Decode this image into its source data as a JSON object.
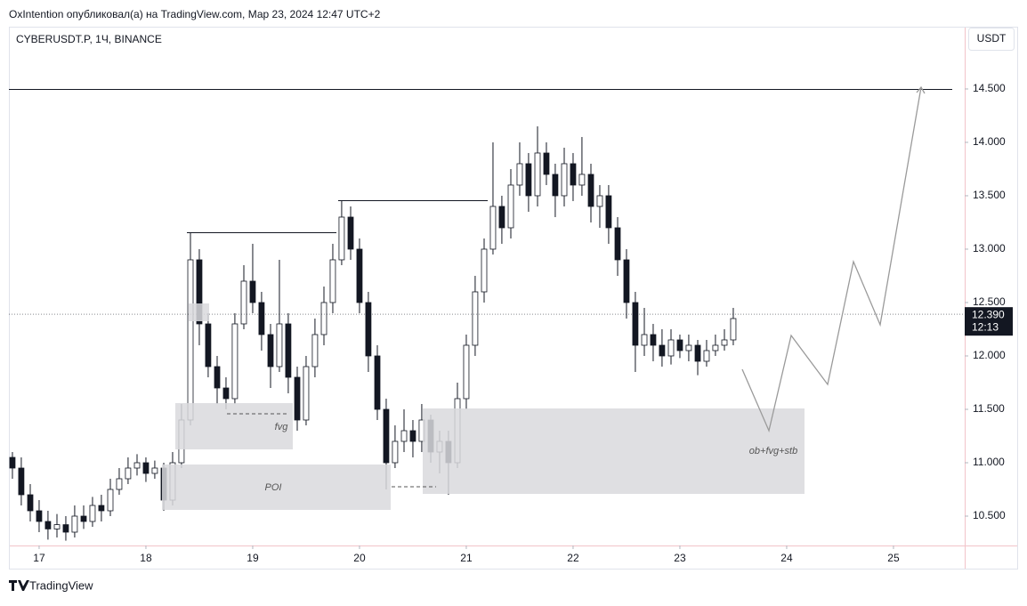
{
  "header": {
    "note": "OxIntention опубликовал(а) на TradingView.com, Мар 23, 2024 12:47 UTC+2"
  },
  "footer": {
    "brand": "TradingView"
  },
  "annotations": [
    "fvg",
    "POI",
    "ob+fvg+stb"
  ],
  "chart_data": {
    "type": "candlestick",
    "title": "CYBERUSDT.P, 1Ч, BINANCE",
    "currency": "USDT",
    "up_color": "#ffffff",
    "down_color": "#131722",
    "xlim": [
      16.717,
      25.667
    ],
    "ylim": [
      10.225,
      15.083
    ],
    "xticks": [
      17,
      18,
      19,
      20,
      21,
      22,
      23,
      24,
      25
    ],
    "yticks": [
      {
        "value": 10.5,
        "label": "10.500"
      },
      {
        "value": 11,
        "label": "11.000"
      },
      {
        "value": 11.5,
        "label": "11.500"
      },
      {
        "value": 12,
        "label": "12.000"
      },
      {
        "value": 12.5,
        "label": "12.500"
      },
      {
        "value": 13,
        "label": "13.000"
      },
      {
        "value": 13.5,
        "label": "13.500"
      },
      {
        "value": 14,
        "label": "14.000"
      },
      {
        "value": 14.5,
        "label": "14.500"
      }
    ],
    "last_price": {
      "value": 12.39,
      "label": "12.390"
    },
    "countdown": "12:13",
    "x": [
      16.75,
      16.833,
      16.917,
      17.0,
      17.083,
      17.167,
      17.25,
      17.333,
      17.417,
      17.5,
      17.583,
      17.667,
      17.75,
      17.833,
      17.917,
      18.0,
      18.083,
      18.167,
      18.25,
      18.333,
      18.417,
      18.5,
      18.583,
      18.667,
      18.75,
      18.833,
      18.917,
      19.0,
      19.083,
      19.167,
      19.25,
      19.333,
      19.417,
      19.5,
      19.583,
      19.667,
      19.75,
      19.833,
      19.917,
      20.0,
      20.083,
      20.167,
      20.25,
      20.333,
      20.417,
      20.5,
      20.583,
      20.667,
      20.75,
      20.833,
      20.917,
      21.0,
      21.083,
      21.167,
      21.25,
      21.333,
      21.417,
      21.5,
      21.583,
      21.667,
      21.75,
      21.833,
      21.917,
      22.0,
      22.083,
      22.167,
      22.25,
      22.333,
      22.417,
      22.5,
      22.583,
      22.667,
      22.75,
      22.833,
      22.917,
      23.0,
      23.083,
      23.167,
      23.25,
      23.333,
      23.417,
      23.5
    ],
    "open": [
      11.05,
      10.95,
      10.7,
      10.55,
      10.45,
      10.38,
      10.42,
      10.35,
      10.5,
      10.45,
      10.6,
      10.55,
      10.75,
      10.85,
      10.95,
      11.0,
      10.9,
      10.95,
      10.65,
      11.0,
      11.4,
      12.9,
      12.3,
      11.9,
      11.7,
      11.6,
      12.3,
      12.7,
      12.5,
      12.2,
      11.9,
      12.3,
      11.8,
      11.4,
      11.9,
      12.2,
      12.5,
      12.9,
      13.3,
      13.0,
      12.5,
      12.0,
      11.5,
      11.0,
      11.2,
      11.3,
      11.2,
      11.4,
      11.1,
      11.2,
      11.0,
      11.6,
      12.1,
      12.6,
      13.0,
      13.4,
      13.2,
      13.6,
      13.8,
      13.5,
      13.9,
      13.7,
      13.5,
      13.8,
      13.6,
      13.7,
      13.4,
      13.5,
      13.2,
      12.9,
      12.5,
      12.1,
      12.2,
      12.1,
      12.0,
      12.15,
      12.05,
      12.1,
      11.95,
      12.05,
      12.1,
      12.15
    ],
    "high": [
      11.1,
      11.05,
      10.8,
      10.65,
      10.55,
      10.52,
      10.5,
      10.6,
      10.6,
      10.68,
      10.7,
      10.85,
      10.95,
      11.05,
      11.08,
      11.05,
      11.02,
      11.0,
      11.1,
      11.55,
      13.15,
      13.0,
      12.4,
      12.0,
      11.8,
      12.4,
      12.85,
      13.05,
      12.6,
      12.3,
      12.9,
      12.4,
      11.9,
      12.0,
      12.35,
      12.65,
      13.05,
      13.45,
      13.4,
      13.1,
      12.6,
      12.1,
      11.6,
      11.35,
      11.5,
      11.4,
      11.55,
      11.45,
      11.3,
      11.3,
      11.75,
      12.2,
      12.75,
      13.1,
      14.0,
      13.5,
      13.75,
      14.0,
      13.9,
      14.15,
      14.0,
      13.8,
      13.95,
      13.9,
      14.05,
      13.8,
      13.6,
      13.6,
      13.3,
      13.0,
      12.6,
      12.45,
      12.3,
      12.25,
      12.25,
      12.2,
      12.2,
      12.15,
      12.15,
      12.2,
      12.25,
      12.45
    ],
    "low": [
      10.85,
      10.6,
      10.45,
      10.35,
      10.28,
      10.3,
      10.27,
      10.3,
      10.38,
      10.4,
      10.45,
      10.5,
      10.7,
      10.8,
      10.88,
      10.82,
      10.85,
      10.55,
      10.6,
      10.95,
      11.35,
      12.1,
      11.8,
      11.55,
      11.5,
      11.55,
      12.25,
      12.4,
      12.05,
      11.7,
      11.85,
      11.65,
      11.3,
      11.35,
      11.8,
      12.1,
      12.4,
      12.85,
      12.9,
      12.4,
      11.85,
      11.4,
      10.75,
      10.95,
      11.1,
      11.05,
      11.1,
      11.0,
      10.9,
      10.7,
      10.95,
      11.5,
      12.0,
      12.5,
      12.95,
      13.05,
      13.1,
      13.5,
      13.35,
      13.4,
      13.6,
      13.3,
      13.4,
      13.45,
      13.5,
      13.25,
      13.2,
      13.05,
      12.75,
      12.35,
      11.85,
      12.0,
      11.95,
      11.9,
      11.92,
      11.98,
      11.95,
      11.82,
      11.9,
      12.0,
      12.05,
      12.1
    ],
    "close": [
      10.95,
      10.7,
      10.55,
      10.45,
      10.38,
      10.42,
      10.35,
      10.5,
      10.45,
      10.6,
      10.55,
      10.75,
      10.85,
      10.95,
      11.0,
      10.9,
      10.95,
      10.65,
      11.0,
      11.4,
      12.9,
      12.3,
      11.9,
      11.7,
      11.6,
      12.3,
      12.7,
      12.5,
      12.2,
      11.9,
      12.3,
      11.8,
      11.4,
      11.9,
      12.2,
      12.5,
      12.9,
      13.3,
      13.0,
      12.5,
      12.0,
      11.5,
      11.0,
      11.2,
      11.3,
      11.2,
      11.4,
      11.1,
      11.2,
      11.0,
      11.6,
      12.1,
      12.6,
      13.0,
      13.4,
      13.2,
      13.6,
      13.8,
      13.5,
      13.9,
      13.7,
      13.5,
      13.8,
      13.6,
      13.7,
      13.4,
      13.5,
      13.2,
      12.9,
      12.5,
      12.1,
      12.2,
      12.1,
      12.0,
      12.15,
      12.05,
      12.1,
      11.95,
      12.05,
      12.1,
      12.15,
      12.35
    ]
  }
}
